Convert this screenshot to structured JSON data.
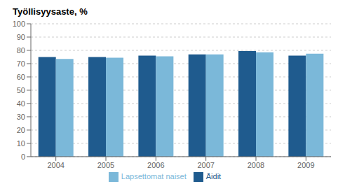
{
  "chart_data": {
    "type": "bar",
    "title": "Työllisyysaste, %",
    "categories": [
      "2004",
      "2005",
      "2006",
      "2007",
      "2008",
      "2009"
    ],
    "series": [
      {
        "name": "Äidit",
        "color": "#1f5b8e",
        "values": [
          75.0,
          75.0,
          76.0,
          77.0,
          79.5,
          76.0
        ]
      },
      {
        "name": "Lapsettomat naiset",
        "color": "#7bb8d9",
        "values": [
          73.5,
          74.5,
          75.5,
          77.0,
          78.5,
          77.5
        ]
      }
    ],
    "ylim": [
      0,
      100
    ],
    "yticks": [
      0,
      10,
      20,
      30,
      40,
      50,
      60,
      70,
      80,
      90,
      100
    ],
    "grid": true,
    "legend": "bottom"
  }
}
